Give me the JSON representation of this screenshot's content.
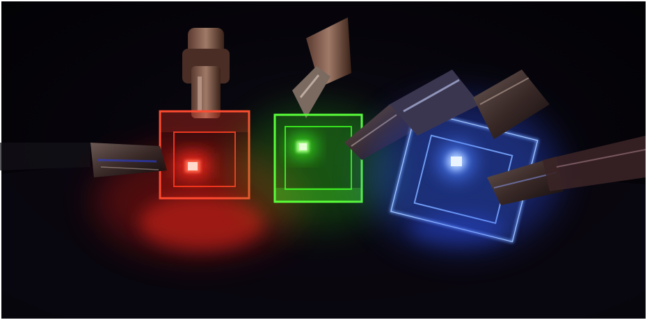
{
  "photo": {
    "background_color": "#06040a",
    "border_color": "#ffffff",
    "devices": [
      {
        "name": "red-oled-device",
        "emission_color": "#ff2a1a",
        "glow_color": "#ff1a0a",
        "pixel_color": "#ffd9cc"
      },
      {
        "name": "green-oled-device",
        "emission_color": "#3cff1e",
        "glow_color": "#2bd415",
        "pixel_color": "#e8ffd8"
      },
      {
        "name": "blue-oled-device",
        "emission_color": "#4a7dff",
        "glow_color": "#2f55ff",
        "pixel_color": "#eaf4ff"
      }
    ],
    "clip_color": "#3a2a28",
    "clip_highlight": "#c7b3a8"
  }
}
